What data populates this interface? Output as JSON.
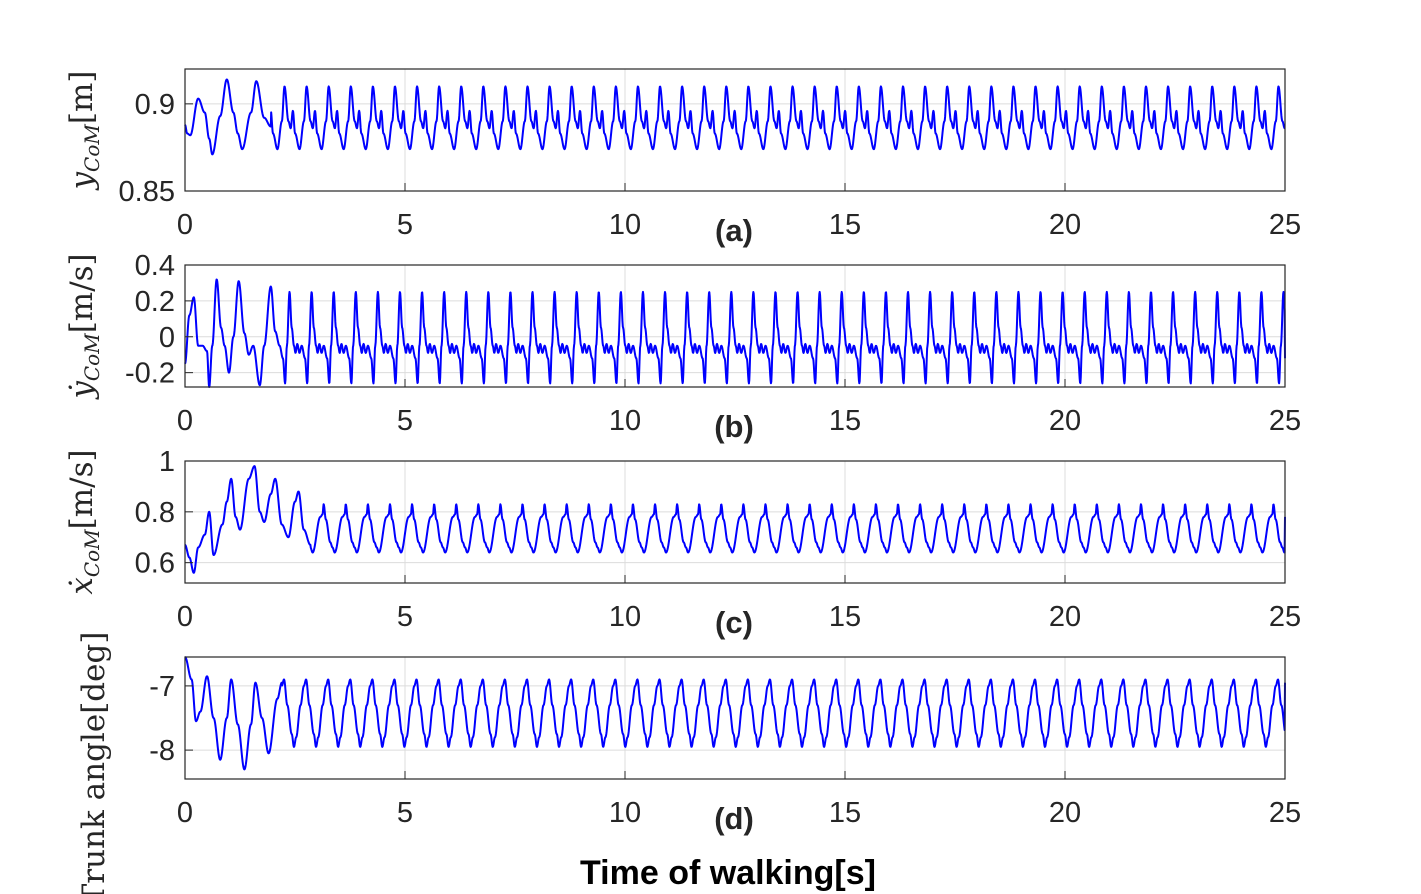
{
  "figure": {
    "xlabel": "Time of walking[s]",
    "line_color": "#0000ff"
  },
  "chart_data": [
    {
      "type": "line",
      "panel_label": "(a)",
      "ylabel_main": "y",
      "ylabel_sub": "CoM",
      "ylabel_unit": "[m]",
      "xlim": [
        0,
        25
      ],
      "ylim": [
        0.85,
        0.92
      ],
      "xticks": [
        0,
        5,
        10,
        15,
        20,
        25
      ],
      "xtick_labels": [
        "0",
        "5",
        "10",
        "15",
        "20",
        "25"
      ],
      "yticks": [
        0.85,
        0.9
      ],
      "ytick_labels": [
        "0.85",
        "0.9"
      ],
      "grid": true,
      "gait_period": 0.502,
      "cycle_shape": [
        [
          0,
          0.896
        ],
        [
          0.1,
          0.883
        ],
        [
          0.3,
          0.874
        ],
        [
          0.5,
          0.89
        ],
        [
          0.62,
          0.91
        ],
        [
          0.8,
          0.89
        ],
        [
          0.9,
          0.886
        ],
        [
          1.0,
          0.896
        ]
      ],
      "transient": [
        [
          0,
          0.888
        ],
        [
          0.05,
          0.883
        ],
        [
          0.12,
          0.882
        ],
        [
          0.3,
          0.903
        ],
        [
          0.45,
          0.895
        ],
        [
          0.55,
          0.88
        ],
        [
          0.62,
          0.871
        ],
        [
          0.8,
          0.893
        ],
        [
          0.95,
          0.914
        ],
        [
          1.1,
          0.895
        ],
        [
          1.2,
          0.883
        ],
        [
          1.3,
          0.874
        ],
        [
          1.5,
          0.895
        ],
        [
          1.62,
          0.913
        ],
        [
          1.8,
          0.892
        ],
        [
          1.95,
          0.887
        ]
      ],
      "transient_end": 1.95,
      "end_value": 0.886
    },
    {
      "type": "line",
      "panel_label": "(b)",
      "ylabel_main": "ẏ",
      "ylabel_sub": "CoM",
      "ylabel_unit": "[m/s]",
      "xlim": [
        0,
        25
      ],
      "ylim": [
        -0.28,
        0.4
      ],
      "xticks": [
        0,
        5,
        10,
        15,
        20,
        25
      ],
      "xtick_labels": [
        "0",
        "5",
        "10",
        "15",
        "20",
        "25"
      ],
      "yticks": [
        -0.2,
        0,
        0.2,
        0.4
      ],
      "ytick_labels": [
        "-0.2",
        "0",
        "0.2",
        "0.4"
      ],
      "grid": true,
      "gait_period": 0.502,
      "cycle_shape": [
        [
          0,
          -0.05
        ],
        [
          0.15,
          -0.12
        ],
        [
          0.25,
          -0.26
        ],
        [
          0.33,
          -0.05
        ],
        [
          0.45,
          0.25
        ],
        [
          0.55,
          0.05
        ],
        [
          0.65,
          -0.05
        ],
        [
          0.72,
          -0.09
        ],
        [
          0.8,
          -0.04
        ],
        [
          0.9,
          -0.09
        ],
        [
          1.0,
          -0.05
        ]
      ],
      "transient": [
        [
          0,
          -0.15
        ],
        [
          0.1,
          0.12
        ],
        [
          0.2,
          0.22
        ],
        [
          0.3,
          -0.05
        ],
        [
          0.4,
          -0.05
        ],
        [
          0.5,
          -0.08
        ],
        [
          0.55,
          -0.28
        ],
        [
          0.62,
          -0.05
        ],
        [
          0.72,
          0.32
        ],
        [
          0.82,
          0.05
        ],
        [
          0.9,
          -0.05
        ],
        [
          1.0,
          -0.2
        ],
        [
          1.1,
          0.0
        ],
        [
          1.22,
          0.31
        ],
        [
          1.35,
          0.02
        ],
        [
          1.45,
          -0.1
        ],
        [
          1.55,
          -0.05
        ],
        [
          1.7,
          -0.27
        ],
        [
          1.8,
          -0.05
        ],
        [
          1.95,
          0.28
        ],
        [
          2.05,
          0.03
        ],
        [
          2.15,
          -0.05
        ]
      ],
      "transient_end": 2.15,
      "end_value": -0.12
    },
    {
      "type": "line",
      "panel_label": "(c)",
      "ylabel_main": "ẋ",
      "ylabel_sub": "CoM",
      "ylabel_unit": "[m/s]",
      "xlim": [
        0,
        25
      ],
      "ylim": [
        0.52,
        1.0
      ],
      "xticks": [
        0,
        5,
        10,
        15,
        20,
        25
      ],
      "xtick_labels": [
        "0",
        "5",
        "10",
        "15",
        "20",
        "25"
      ],
      "yticks": [
        0.6,
        0.8,
        1.0
      ],
      "ytick_labels": [
        "0.6",
        "0.8",
        "1"
      ],
      "grid": true,
      "gait_period": 0.502,
      "cycle_shape": [
        [
          0,
          0.66
        ],
        [
          0.1,
          0.64
        ],
        [
          0.45,
          0.78
        ],
        [
          0.55,
          0.79
        ],
        [
          0.6,
          0.83
        ],
        [
          0.7,
          0.77
        ],
        [
          0.9,
          0.68
        ],
        [
          1.0,
          0.66
        ]
      ],
      "transient": [
        [
          0,
          0.67
        ],
        [
          0.1,
          0.62
        ],
        [
          0.2,
          0.56
        ],
        [
          0.3,
          0.66
        ],
        [
          0.45,
          0.71
        ],
        [
          0.55,
          0.8
        ],
        [
          0.65,
          0.63
        ],
        [
          0.85,
          0.75
        ],
        [
          0.95,
          0.84
        ],
        [
          1.05,
          0.93
        ],
        [
          1.15,
          0.78
        ],
        [
          1.25,
          0.73
        ],
        [
          1.45,
          0.93
        ],
        [
          1.58,
          0.98
        ],
        [
          1.7,
          0.8
        ],
        [
          1.8,
          0.76
        ],
        [
          1.95,
          0.87
        ],
        [
          2.05,
          0.93
        ],
        [
          2.2,
          0.75
        ],
        [
          2.35,
          0.7
        ],
        [
          2.5,
          0.84
        ],
        [
          2.58,
          0.88
        ],
        [
          2.7,
          0.73
        ],
        [
          2.85,
          0.67
        ]
      ],
      "transient_end": 2.85,
      "end_value": 0.78
    },
    {
      "type": "line",
      "panel_label": "(d)",
      "ylabel_main": "Trunk angle[deg]",
      "ylabel_sub": "",
      "ylabel_unit": "",
      "xlim": [
        0,
        25
      ],
      "ylim": [
        -8.45,
        -6.55
      ],
      "xticks": [
        0,
        5,
        10,
        15,
        20,
        25
      ],
      "xtick_labels": [
        "0",
        "5",
        "10",
        "15",
        "20",
        "25"
      ],
      "yticks": [
        -8,
        -7
      ],
      "ytick_labels": [
        "-8",
        "-7"
      ],
      "grid": true,
      "gait_period": 0.502,
      "cycle_shape": [
        [
          0,
          -7.0
        ],
        [
          0.1,
          -6.9
        ],
        [
          0.25,
          -7.3
        ],
        [
          0.45,
          -7.75
        ],
        [
          0.55,
          -7.95
        ],
        [
          0.65,
          -7.8
        ],
        [
          0.85,
          -7.3
        ],
        [
          1.0,
          -7.0
        ]
      ],
      "transient": [
        [
          0,
          -6.55
        ],
        [
          0.15,
          -6.9
        ],
        [
          0.25,
          -7.55
        ],
        [
          0.35,
          -7.4
        ],
        [
          0.5,
          -6.85
        ],
        [
          0.65,
          -7.5
        ],
        [
          0.8,
          -8.15
        ],
        [
          0.95,
          -7.5
        ],
        [
          1.05,
          -6.9
        ],
        [
          1.2,
          -7.6
        ],
        [
          1.35,
          -8.3
        ],
        [
          1.5,
          -7.6
        ],
        [
          1.6,
          -6.95
        ],
        [
          1.75,
          -7.5
        ],
        [
          1.9,
          -8.05
        ],
        [
          2.1,
          -7.2
        ],
        [
          2.2,
          -6.95
        ]
      ],
      "transient_end": 2.2,
      "end_value": -6.95
    }
  ]
}
